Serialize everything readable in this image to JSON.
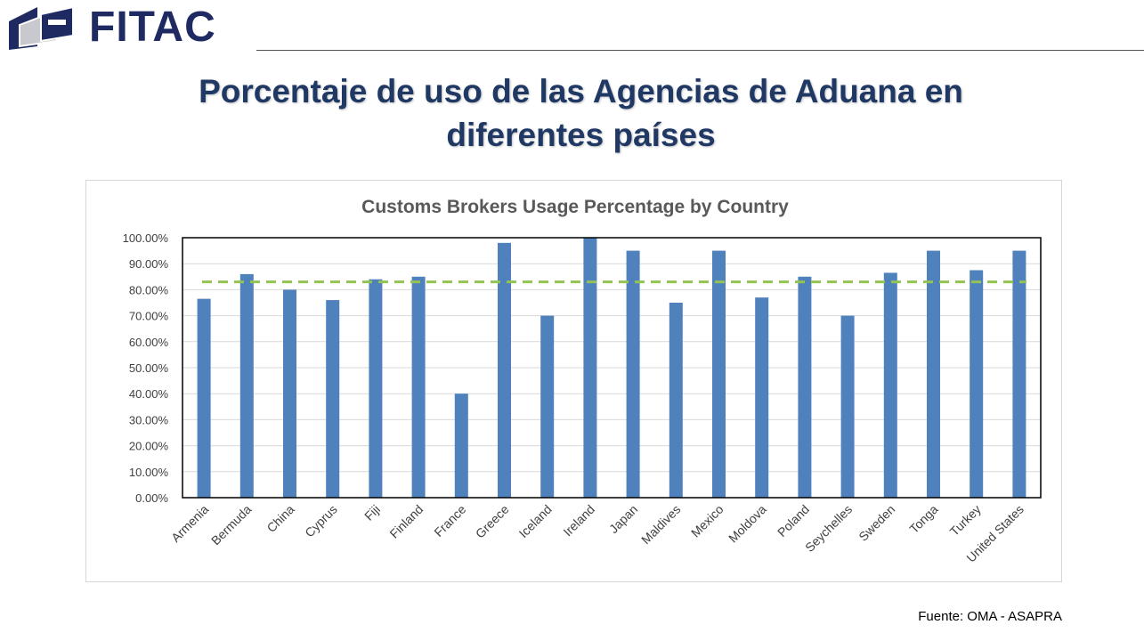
{
  "header": {
    "brand": "FITAC",
    "title_line1": "Porcentaje de uso de las Agencias de Aduana en",
    "title_line2": "diferentes países"
  },
  "source": "Fuente: OMA - ASAPRA",
  "colors": {
    "bar": "#4f81bd",
    "average_line": "#92c353",
    "brand": "#1f2a63",
    "title": "#1f3864"
  },
  "chart_data": {
    "type": "bar",
    "title": "Customs Brokers Usage Percentage by Country",
    "categories": [
      "Armenia",
      "Bermuda",
      "China",
      "Cyprus",
      "Fiji",
      "Finland",
      "France",
      "Greece",
      "Iceland",
      "Ireland",
      "Japan",
      "Maldives",
      "Mexico",
      "Moldova",
      "Poland",
      "Seychelles",
      "Sweden",
      "Tonga",
      "Turkey",
      "United States"
    ],
    "values": [
      76.5,
      86,
      80,
      76,
      84,
      85,
      40,
      98,
      70,
      100,
      95,
      75,
      95,
      77,
      85,
      70,
      86.5,
      95,
      87.5,
      95
    ],
    "average_line": 83,
    "ylim": [
      0,
      100
    ],
    "yticks": [
      "0.00%",
      "10.00%",
      "20.00%",
      "30.00%",
      "40.00%",
      "50.00%",
      "60.00%",
      "70.00%",
      "80.00%",
      "90.00%",
      "100.00%"
    ],
    "grid": true,
    "legend": "none"
  }
}
